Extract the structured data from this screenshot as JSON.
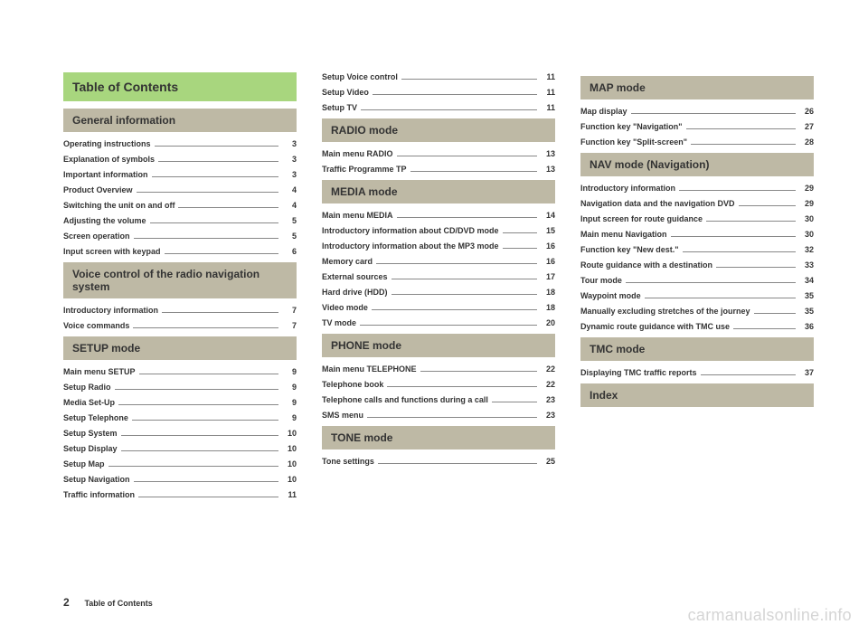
{
  "title": "Table of Contents",
  "footer": {
    "pageNumber": "2",
    "text": "Table of Contents"
  },
  "watermark": "carmanualsonline.info",
  "columns": [
    [
      {
        "type": "title",
        "text": "Table of Contents"
      },
      {
        "type": "section",
        "text": "General information"
      },
      {
        "type": "entry",
        "label": "Operating instructions",
        "page": "3"
      },
      {
        "type": "entry",
        "label": "Explanation of symbols",
        "page": "3"
      },
      {
        "type": "entry",
        "label": "Important information",
        "page": "3"
      },
      {
        "type": "entry",
        "label": "Product Overview",
        "page": "4"
      },
      {
        "type": "entry",
        "label": "Switching the unit on and off",
        "page": "4"
      },
      {
        "type": "entry",
        "label": "Adjusting the volume",
        "page": "5"
      },
      {
        "type": "entry",
        "label": "Screen operation",
        "page": "5"
      },
      {
        "type": "entry",
        "label": "Input screen with keypad",
        "page": "6"
      },
      {
        "type": "section",
        "text": "Voice control of the radio navigation system"
      },
      {
        "type": "entry",
        "label": "Introductory information",
        "page": "7"
      },
      {
        "type": "entry",
        "label": "Voice commands",
        "page": "7"
      },
      {
        "type": "section",
        "text": "SETUP mode"
      },
      {
        "type": "entry",
        "label": "Main menu SETUP",
        "page": "9"
      },
      {
        "type": "entry",
        "label": "Setup Radio",
        "page": "9"
      },
      {
        "type": "entry",
        "label": "Media Set-Up",
        "page": "9"
      },
      {
        "type": "entry",
        "label": "Setup Telephone",
        "page": "9"
      },
      {
        "type": "entry",
        "label": "Setup System",
        "page": "10"
      },
      {
        "type": "entry",
        "label": "Setup Display",
        "page": "10"
      },
      {
        "type": "entry",
        "label": "Setup Map",
        "page": "10"
      },
      {
        "type": "entry",
        "label": "Setup Navigation",
        "page": "10"
      },
      {
        "type": "entry",
        "label": "Traffic information",
        "page": "11"
      }
    ],
    [
      {
        "type": "entry",
        "label": "Setup Voice control",
        "page": "11"
      },
      {
        "type": "entry",
        "label": "Setup Video",
        "page": "11"
      },
      {
        "type": "entry",
        "label": "Setup TV",
        "page": "11"
      },
      {
        "type": "section",
        "text": "RADIO mode"
      },
      {
        "type": "entry",
        "label": "Main menu RADIO",
        "page": "13"
      },
      {
        "type": "entry",
        "label": "Traffic Programme TP",
        "page": "13"
      },
      {
        "type": "section",
        "text": "MEDIA mode"
      },
      {
        "type": "entry",
        "label": "Main menu MEDIA",
        "page": "14"
      },
      {
        "type": "entry",
        "label": "Introductory information about CD/DVD mode",
        "page": "15"
      },
      {
        "type": "entry",
        "label": "Introductory information about the MP3 mode",
        "page": "16"
      },
      {
        "type": "entry",
        "label": "Memory card",
        "page": "16"
      },
      {
        "type": "entry",
        "label": "External sources",
        "page": "17"
      },
      {
        "type": "entry",
        "label": "Hard drive (HDD)",
        "page": "18"
      },
      {
        "type": "entry",
        "label": "Video mode",
        "page": "18"
      },
      {
        "type": "entry",
        "label": "TV mode",
        "page": "20"
      },
      {
        "type": "section",
        "text": "PHONE mode"
      },
      {
        "type": "entry",
        "label": "Main menu TELEPHONE",
        "page": "22"
      },
      {
        "type": "entry",
        "label": "Telephone book",
        "page": "22"
      },
      {
        "type": "entry",
        "label": "Telephone calls and functions during a call",
        "page": "23"
      },
      {
        "type": "entry",
        "label": "SMS menu",
        "page": "23"
      },
      {
        "type": "section",
        "text": "TONE mode"
      },
      {
        "type": "entry",
        "label": "Tone settings",
        "page": "25"
      }
    ],
    [
      {
        "type": "section",
        "text": "MAP mode"
      },
      {
        "type": "entry",
        "label": "Map display",
        "page": "26"
      },
      {
        "type": "entry",
        "label": "Function key \"Navigation\"",
        "page": "27"
      },
      {
        "type": "entry",
        "label": "Function key \"Split-screen\"",
        "page": "28"
      },
      {
        "type": "section",
        "text": "NAV mode (Navigation)"
      },
      {
        "type": "entry",
        "label": "Introductory information",
        "page": "29"
      },
      {
        "type": "entry",
        "label": "Navigation data and the navigation DVD",
        "page": "29"
      },
      {
        "type": "entry",
        "label": "Input screen for route guidance",
        "page": "30"
      },
      {
        "type": "entry",
        "label": "Main menu Navigation",
        "page": "30"
      },
      {
        "type": "entry",
        "label": "Function key \"New dest.\"",
        "page": "32"
      },
      {
        "type": "entry",
        "label": "Route guidance with a destination",
        "page": "33"
      },
      {
        "type": "entry",
        "label": "Tour mode",
        "page": "34"
      },
      {
        "type": "entry",
        "label": "Waypoint mode",
        "page": "35"
      },
      {
        "type": "entry",
        "label": "Manually excluding stretches of the journey",
        "page": "35"
      },
      {
        "type": "entry",
        "label": "Dynamic route guidance with TMC use",
        "page": "36"
      },
      {
        "type": "section",
        "text": "TMC mode"
      },
      {
        "type": "entry",
        "label": "Displaying TMC traffic reports",
        "page": "37"
      },
      {
        "type": "section",
        "text": "Index"
      }
    ]
  ]
}
